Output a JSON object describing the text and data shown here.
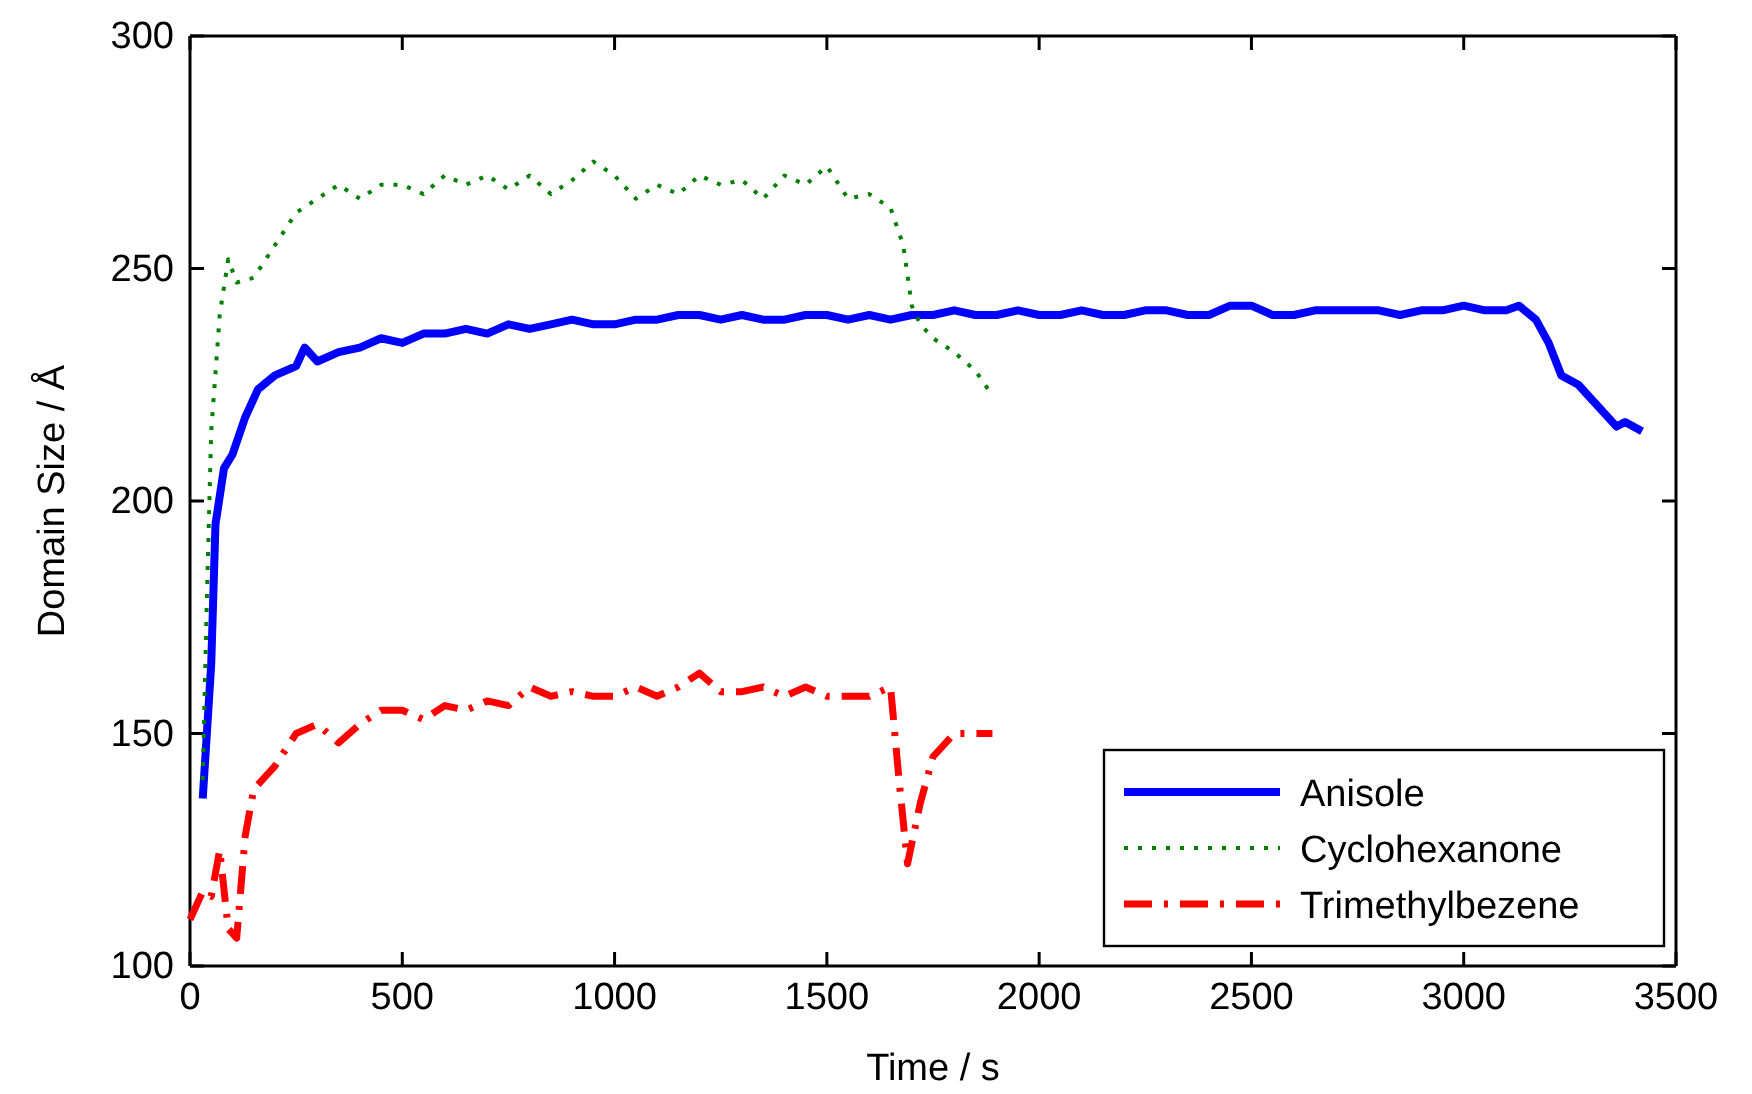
{
  "chart_data": {
    "type": "line",
    "xlabel": "Time / s",
    "ylabel": "Domain Size / Å",
    "xlim": [
      0,
      3500
    ],
    "xticks": [
      0,
      500,
      1000,
      1500,
      2000,
      2500,
      3000,
      3500
    ],
    "ylim": [
      100,
      300
    ],
    "yticks": [
      100,
      150,
      200,
      250,
      300
    ],
    "grid": false,
    "legend": "bottom right",
    "marker": "none",
    "series": [
      {
        "name": "Anisole",
        "color": "#0000ff",
        "line_style": "solid",
        "x": [
          30,
          50,
          60,
          80,
          100,
          130,
          160,
          200,
          250,
          270,
          300,
          350,
          400,
          450,
          500,
          550,
          600,
          650,
          700,
          750,
          800,
          850,
          900,
          950,
          1000,
          1050,
          1100,
          1150,
          1200,
          1250,
          1300,
          1350,
          1400,
          1450,
          1500,
          1550,
          1600,
          1650,
          1700,
          1750,
          1800,
          1850,
          1900,
          1950,
          2000,
          2050,
          2100,
          2150,
          2200,
          2250,
          2300,
          2350,
          2400,
          2450,
          2500,
          2550,
          2600,
          2650,
          2700,
          2750,
          2800,
          2850,
          2900,
          2950,
          3000,
          3050,
          3100,
          3130,
          3170,
          3200,
          3230,
          3270,
          3300,
          3330,
          3360,
          3380,
          3420
        ],
        "values": [
          136,
          165,
          195,
          207,
          210,
          218,
          224,
          227,
          229,
          233,
          230,
          232,
          233,
          235,
          234,
          236,
          236,
          237,
          236,
          238,
          237,
          238,
          239,
          238,
          238,
          239,
          239,
          240,
          240,
          239,
          240,
          239,
          239,
          240,
          240,
          239,
          240,
          239,
          240,
          240,
          241,
          240,
          240,
          241,
          240,
          240,
          241,
          240,
          240,
          241,
          241,
          240,
          240,
          242,
          242,
          240,
          240,
          241,
          241,
          241,
          241,
          240,
          241,
          241,
          242,
          241,
          241,
          242,
          239,
          234,
          227,
          225,
          222,
          219,
          216,
          217,
          215
        ]
      },
      {
        "name": "Cyclohexanone",
        "color": "#008000",
        "line_style": "dotted",
        "x": [
          30,
          40,
          50,
          70,
          90,
          110,
          150,
          200,
          250,
          300,
          350,
          400,
          450,
          500,
          550,
          600,
          650,
          700,
          750,
          800,
          850,
          900,
          950,
          1000,
          1050,
          1100,
          1150,
          1200,
          1250,
          1300,
          1350,
          1400,
          1450,
          1500,
          1550,
          1600,
          1650,
          1680,
          1700,
          1720,
          1750,
          1800,
          1850,
          1880
        ],
        "values": [
          140,
          180,
          215,
          240,
          252,
          247,
          248,
          255,
          262,
          265,
          268,
          265,
          268,
          268,
          266,
          270,
          268,
          270,
          267,
          270,
          266,
          269,
          273,
          270,
          265,
          268,
          266,
          270,
          268,
          269,
          265,
          270,
          268,
          272,
          265,
          266,
          263,
          255,
          242,
          238,
          235,
          232,
          228,
          224
        ]
      },
      {
        "name": "Trimethylbezene",
        "color": "#ff0000",
        "line_style": "dashdot",
        "x": [
          0,
          30,
          50,
          70,
          90,
          110,
          130,
          150,
          200,
          250,
          300,
          350,
          400,
          450,
          500,
          550,
          600,
          650,
          700,
          750,
          800,
          850,
          900,
          950,
          1000,
          1050,
          1100,
          1150,
          1200,
          1250,
          1300,
          1350,
          1400,
          1450,
          1500,
          1550,
          1600,
          1650,
          1670,
          1690,
          1720,
          1750,
          1800,
          1850,
          1890
        ],
        "values": [
          110,
          116,
          115,
          125,
          108,
          106,
          128,
          138,
          143,
          150,
          152,
          148,
          152,
          155,
          155,
          153,
          156,
          155,
          157,
          156,
          160,
          158,
          159,
          158,
          158,
          160,
          158,
          160,
          163,
          159,
          159,
          160,
          158,
          160,
          158,
          158,
          158,
          160,
          140,
          122,
          135,
          145,
          150,
          150,
          150
        ]
      }
    ]
  }
}
